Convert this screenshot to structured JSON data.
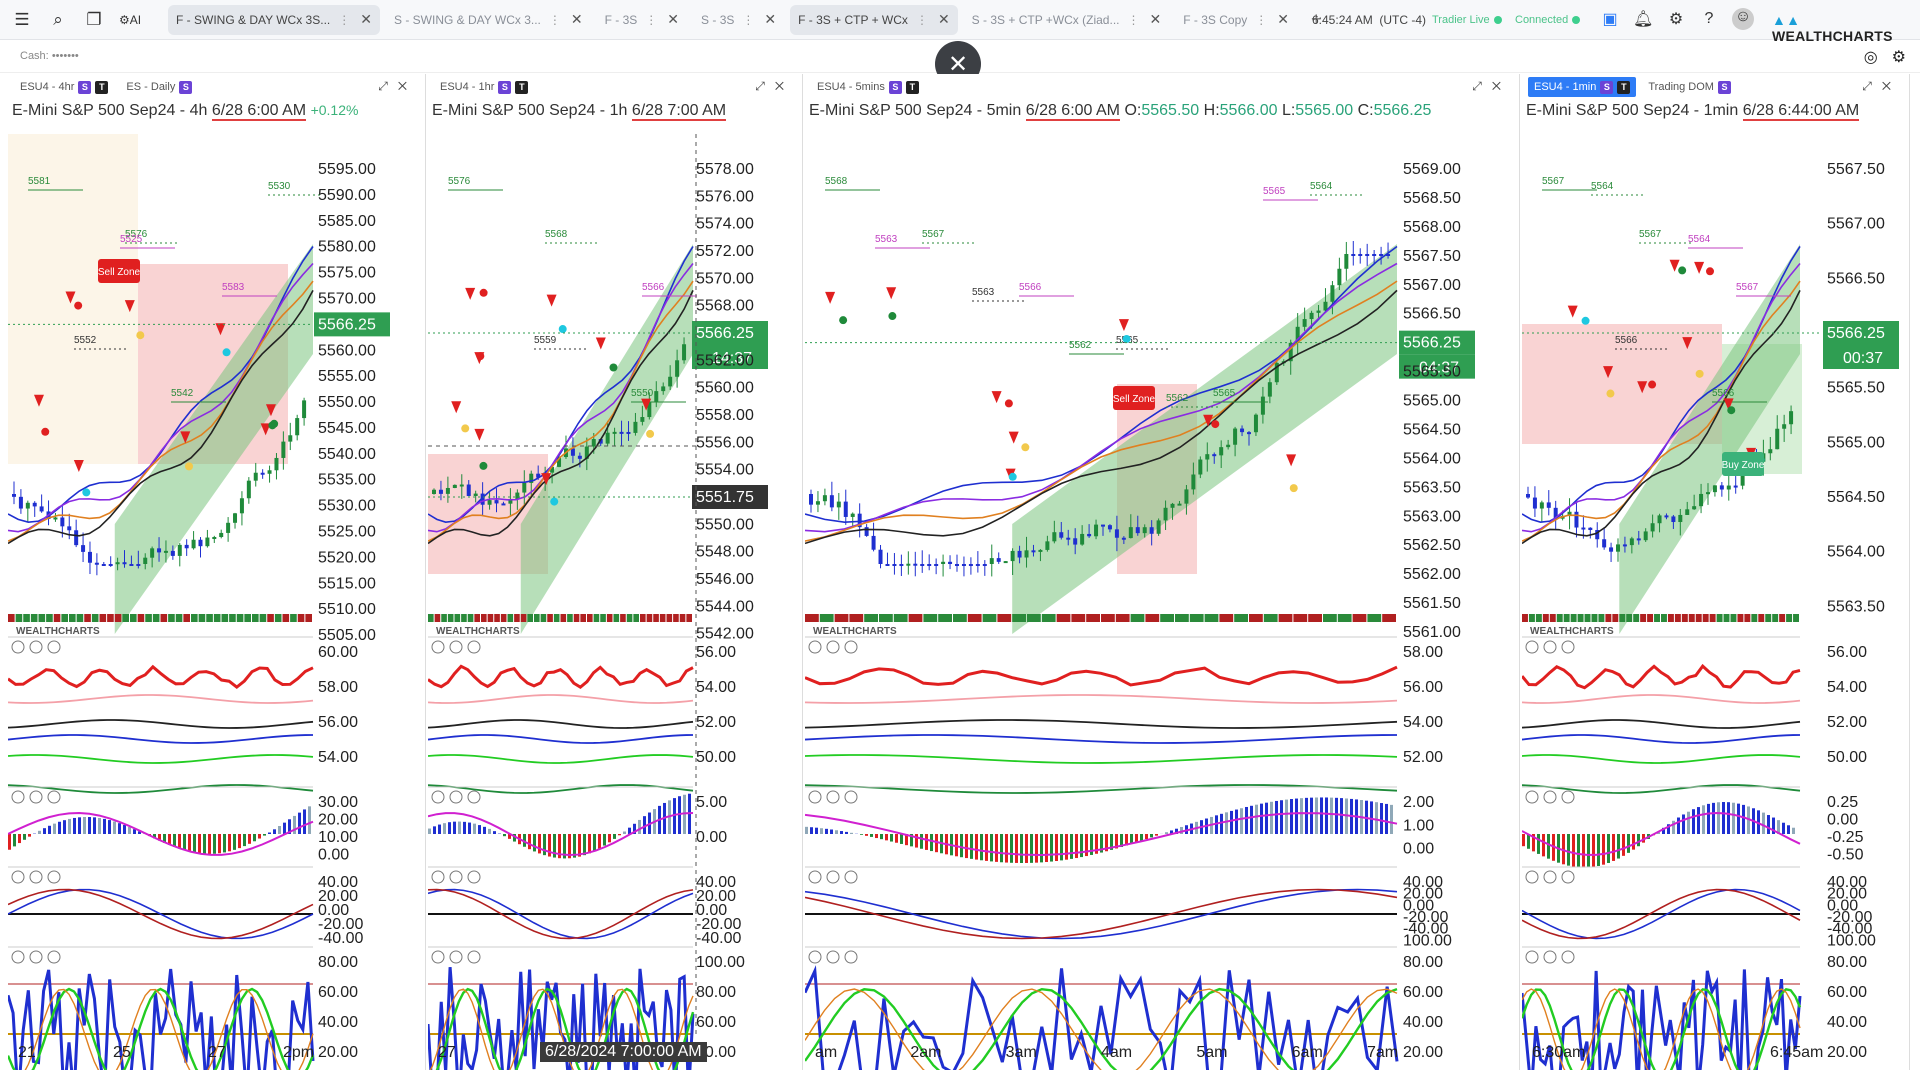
{
  "topbar": {
    "tabs": [
      {
        "label": "F - SWING & DAY WCx 3S...",
        "active": true
      },
      {
        "label": "S - SWING & DAY WCx 3...",
        "active": false
      },
      {
        "label": "F - 3S",
        "active": false
      },
      {
        "label": "S - 3S",
        "active": false
      },
      {
        "label": "F - 3S + CTP + WCx",
        "active": true
      },
      {
        "label": "S - 3S + CTP +WCx (Ziad...",
        "active": false
      },
      {
        "label": "F - 3S Copy",
        "active": false
      }
    ],
    "clock": "6:45:24 AM",
    "timezone": "(UTC -4)",
    "tradier_status": "Tradier Live",
    "connection_status": "Connected",
    "brand": "WEALTHCHARTS",
    "icons": [
      "menu-icon",
      "search-icon",
      "copy-icon",
      "ai-icon",
      "save-icon",
      "bell-icon",
      "gear-icon",
      "help-icon",
      "avatar"
    ]
  },
  "subbar": {
    "cash_label": "Cash:",
    "cash_value": "•••••••"
  },
  "colors": {
    "up": "#1f8a3a",
    "down": "#1f2fd0",
    "red": "#e02020",
    "pink_zone": "#f7c9c9",
    "green_zone": "#bfe5c0",
    "price_tag": "#2f9e52",
    "text": "#222"
  },
  "panels": [
    {
      "tabs": [
        {
          "label": "ESU4 - 4hr",
          "selected": false
        },
        {
          "label": "ES - Daily",
          "selected": false
        }
      ],
      "title": "E-Mini S&P 500 Sep24 - 4h",
      "date": "6/28 6:00 AM",
      "change": "+0.12%",
      "price_tag": "5566.25",
      "y_axis": [
        "5595.00",
        "5590.00",
        "5585.00",
        "5580.00",
        "5575.00",
        "5570.00",
        "5566.25",
        "5560.00",
        "5555.00",
        "5550.00",
        "5545.00",
        "5540.00",
        "5535.00",
        "5530.00",
        "5525.00",
        "5520.00",
        "5515.00",
        "5510.00",
        "5505.00"
      ],
      "ind1_axis": [
        "60.00",
        "58.00",
        "56.00",
        "54.00"
      ],
      "ind2_axis": [
        "30.00",
        "20.00",
        "10.00",
        "0.00"
      ],
      "ind3_axis": [
        "40.00",
        "20.00",
        "0.00",
        "-20.00",
        "-40.00"
      ],
      "ind4_axis": [
        "80.00",
        "60.00",
        "40.00",
        "20.00",
        "0.00"
      ],
      "x_axis": [
        "21",
        "25",
        "27",
        "2pm"
      ],
      "levels": [
        "5581",
        "5576",
        "5583",
        "5552",
        "5542",
        "5530",
        "5525"
      ],
      "zone_label": "Sell Zone"
    },
    {
      "tabs": [
        {
          "label": "ESU4 - 1hr",
          "selected": false
        }
      ],
      "title": "E-Mini S&P 500 Sep24 - 1h",
      "date": "6/28 7:00 AM",
      "price_tag": "5566.25",
      "countdown": "14:37",
      "cursor_price": "5551.75",
      "y_axis": [
        "5578.00",
        "5576.00",
        "5574.00",
        "5572.00",
        "5570.00",
        "5568.00",
        "5566.25",
        "5562.00",
        "5560.00",
        "5558.00",
        "5556.00",
        "5554.00",
        "5551.75",
        "5550.00",
        "5548.00",
        "5546.00",
        "5544.00",
        "5542.00"
      ],
      "ind1_axis": [
        "56.00",
        "54.00",
        "52.00",
        "50.00"
      ],
      "ind2_axis": [
        "5.00",
        "0.00"
      ],
      "ind3_axis": [
        "40.00",
        "20.00",
        "0.00",
        "-20.00",
        "-40.00"
      ],
      "ind4_axis": [
        "100.00",
        "80.00",
        "60.00",
        "40.00",
        "20.00"
      ],
      "x_axis": [
        "27",
        "9am"
      ],
      "time_tag": "6/28/2024 7:00:00 AM",
      "levels": [
        "5576",
        "5568",
        "5566",
        "5559",
        "5550"
      ]
    },
    {
      "tabs": [
        {
          "label": "ESU4 - 5mins",
          "selected": false
        }
      ],
      "title": "E-Mini S&P 500 Sep24 - 5min",
      "date": "6/28 6:00 AM",
      "ohlc": {
        "o": "5565.50",
        "h": "5566.00",
        "l": "5565.00",
        "c": "5566.25"
      },
      "price_tag": "5566.25",
      "countdown": "04:37",
      "y_axis": [
        "5569.00",
        "5568.50",
        "5568.00",
        "5567.50",
        "5567.00",
        "5566.50",
        "5566.25",
        "5565.50",
        "5565.00",
        "5564.50",
        "5564.00",
        "5563.50",
        "5563.00",
        "5562.50",
        "5562.00",
        "5561.50",
        "5561.00"
      ],
      "ind1_axis": [
        "58.00",
        "56.00",
        "54.00",
        "52.00"
      ],
      "ind2_axis": [
        "2.00",
        "1.00",
        "0.00"
      ],
      "ind3_axis": [
        "40.00",
        "20.00",
        "0.00",
        "-20.00",
        "-40.00",
        "100.00"
      ],
      "ind4_axis": [
        "80.00",
        "60.00",
        "40.00",
        "20.00",
        "0.00"
      ],
      "x_axis": [
        "am",
        "2am",
        "3am",
        "4am",
        "5am",
        "6am",
        "7am"
      ],
      "levels": [
        "5568",
        "5567",
        "5566",
        "5565",
        "5565",
        "5564",
        "5563",
        "5563",
        "5562",
        "5562",
        "5565"
      ],
      "zone_label": "Sell Zone"
    },
    {
      "tabs": [
        {
          "label": "ESU4 - 1min",
          "selected": true
        },
        {
          "label": "Trading DOM",
          "selected": false
        }
      ],
      "title": "E-Mini S&P 500 Sep24 - 1min",
      "date": "6/28 6:44:00 AM",
      "price_tag": "5566.25",
      "countdown": "00:37",
      "y_axis": [
        "5567.50",
        "5567.00",
        "5566.50",
        "5566.25",
        "5565.50",
        "5565.00",
        "5564.50",
        "5564.00",
        "5563.50"
      ],
      "ind1_axis": [
        "56.00",
        "54.00",
        "52.00",
        "50.00"
      ],
      "ind2_axis": [
        "0.25",
        "0.00",
        "-0.25",
        "-0.50"
      ],
      "ind3_axis": [
        "40.00",
        "20.00",
        "0.00",
        "-20.00",
        "-40.00",
        "100.00"
      ],
      "ind4_axis": [
        "80.00",
        "60.00",
        "40.00",
        "20.00",
        "0.00"
      ],
      "x_axis": [
        "6:30am",
        "6:45am"
      ],
      "levels": [
        "5567",
        "5567",
        "5567",
        "5566",
        "5566",
        "5564",
        "5564"
      ],
      "zone_label": "Buy Zone"
    }
  ],
  "watermark": "WEALTHCHARTS"
}
